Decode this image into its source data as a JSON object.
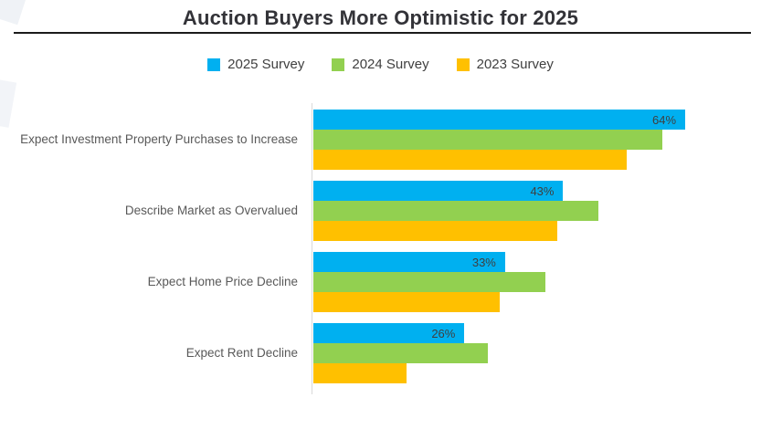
{
  "title": "Auction Buyers More Optimistic for 2025",
  "legend": [
    {
      "label": "2025 Survey",
      "color": "#00B0F0"
    },
    {
      "label": "2024 Survey",
      "color": "#92D050"
    },
    {
      "label": "2023 Survey",
      "color": "#FFC000"
    }
  ],
  "chart_data": {
    "type": "bar",
    "orientation": "horizontal",
    "title": "Auction Buyers More Optimistic for 2025",
    "xlabel": "",
    "ylabel": "",
    "xlim": [
      0,
      77
    ],
    "grid": false,
    "legend_position": "top-center",
    "categories": [
      "Expect Investment Property Purchases to Increase",
      "Describe Market as Overvalued",
      "Expect Home Price Decline",
      "Expect Rent Decline"
    ],
    "series": [
      {
        "name": "2025 Survey",
        "color": "#00B0F0",
        "values": [
          64,
          43,
          33,
          26
        ],
        "value_labels": [
          "64%",
          "43%",
          "33%",
          "26%"
        ]
      },
      {
        "name": "2024 Survey",
        "color": "#92D050",
        "values": [
          60,
          49,
          40,
          30
        ],
        "value_labels": [
          "",
          "",
          "",
          ""
        ]
      },
      {
        "name": "2023 Survey",
        "color": "#FFC000",
        "values": [
          54,
          42,
          32,
          16
        ],
        "value_labels": [
          "",
          "",
          "",
          ""
        ]
      }
    ]
  }
}
